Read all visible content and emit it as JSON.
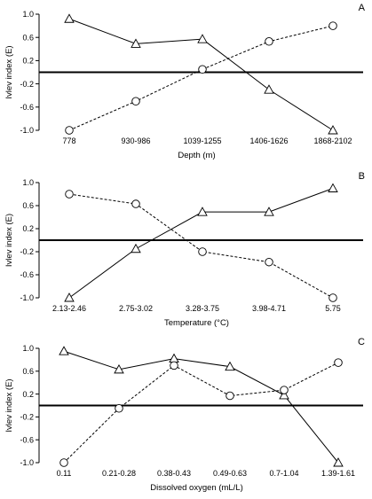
{
  "chart_data": [
    {
      "type": "line",
      "panel_label": "A",
      "xlabel": "Depth (m)",
      "ylabel": "Ivlev index (E)",
      "ylim": [
        -1.0,
        1.0
      ],
      "yticks": [
        "1.0",
        "0.6",
        "0.2",
        "-0.2",
        "-0.6",
        "-1.0"
      ],
      "reference_line_y": 0,
      "categories": [
        "778",
        "930-986",
        "1039-1255",
        "1406-1626",
        "1868-2102"
      ],
      "series": [
        {
          "marker": "triangle",
          "line_style": "solid",
          "values": [
            0.92,
            0.49,
            0.57,
            -0.3,
            -1.0
          ]
        },
        {
          "marker": "circle",
          "line_style": "dashed",
          "values": [
            -1.0,
            -0.5,
            0.05,
            0.53,
            0.8
          ]
        }
      ]
    },
    {
      "type": "line",
      "panel_label": "B",
      "xlabel": "Temperature (°C)",
      "ylabel": "Ivlev index (E)",
      "ylim": [
        -1.0,
        1.0
      ],
      "yticks": [
        "1.0",
        "0.6",
        "0.2",
        "-0.2",
        "-0.6",
        "-1.0"
      ],
      "reference_line_y": 0,
      "categories": [
        "2.13-2.46",
        "2.75-3.02",
        "3.28-3.75",
        "3.98-4.71",
        "5.75"
      ],
      "series": [
        {
          "marker": "triangle",
          "line_style": "solid",
          "values": [
            -1.0,
            -0.15,
            0.49,
            0.49,
            0.9
          ]
        },
        {
          "marker": "circle",
          "line_style": "dashed",
          "values": [
            0.8,
            0.63,
            -0.2,
            -0.38,
            -1.0
          ]
        }
      ]
    },
    {
      "type": "line",
      "panel_label": "C",
      "xlabel": "Dissolved oxygen (mL/L)",
      "ylabel": "Ivlev index (E)",
      "ylim": [
        -1.0,
        1.0
      ],
      "yticks": [
        "1.0",
        "0.6",
        "0.2",
        "-0.2",
        "-0.6",
        "-1.0"
      ],
      "reference_line_y": 0,
      "categories": [
        "0.11",
        "0.21-0.28",
        "0.38-0.43",
        "0.49-0.63",
        "0.7-1.04",
        "1.39-1.61"
      ],
      "series": [
        {
          "marker": "triangle",
          "line_style": "solid",
          "values": [
            0.95,
            0.63,
            0.82,
            0.68,
            0.18,
            -1.0
          ]
        },
        {
          "marker": "circle",
          "line_style": "dashed",
          "values": [
            -1.0,
            -0.05,
            0.7,
            0.17,
            0.27,
            0.75
          ]
        }
      ]
    }
  ]
}
